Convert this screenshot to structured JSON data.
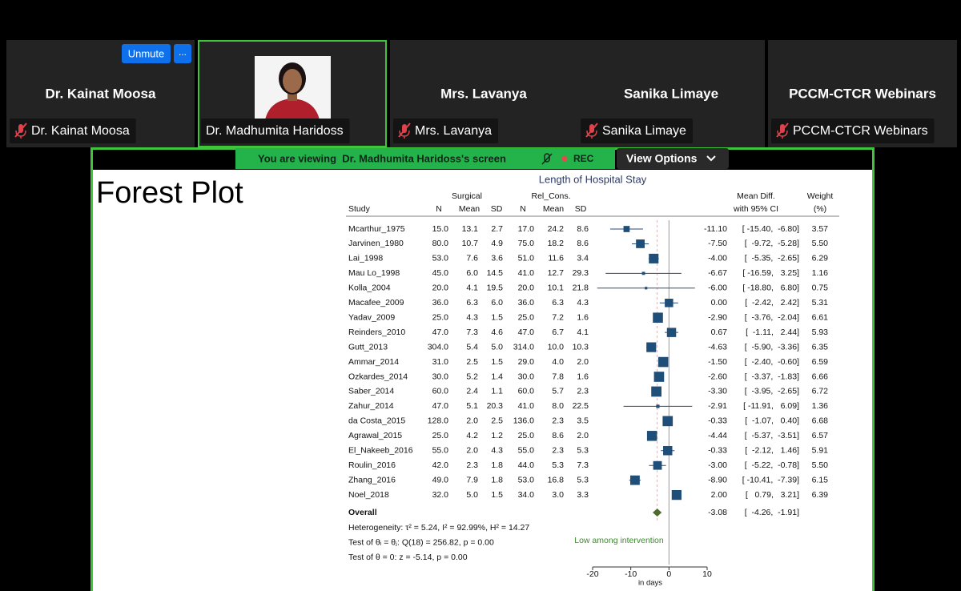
{
  "meeting": {
    "participants": [
      {
        "name": "Dr. Kainat Moosa",
        "label": "Dr. Kainat Moosa",
        "muted": true,
        "active_speaker": false
      },
      {
        "label": "Dr. Madhumita Haridoss",
        "muted": false,
        "active_speaker": true
      },
      {
        "name": "Mrs. Lavanya",
        "label": "Mrs. Lavanya",
        "muted": true,
        "active_speaker": false
      },
      {
        "name": "Sanika Limaye",
        "label": "Sanika Limaye",
        "muted": true,
        "active_speaker": false
      },
      {
        "name": "PCCM-CTCR Webinars",
        "label": "PCCM-CTCR Webinars",
        "muted": true,
        "active_speaker": false
      }
    ],
    "unmute_button": "Unmute",
    "more_button": "...",
    "banner": {
      "text": "You are viewing  Dr. Madhumita Haridoss's screen",
      "rec": "REC"
    },
    "view_options": "View Options"
  },
  "slide": {
    "title": "Forest Plot",
    "plot": {
      "title": "Length of Hospital Stay",
      "groups": [
        "Surgical",
        "Rel_Cons."
      ],
      "columns": [
        "Study",
        "N",
        "Mean",
        "SD",
        "N",
        "Mean",
        "SD"
      ],
      "mean_diff_header": [
        "Mean Diff.",
        "with 95% CI"
      ],
      "weight_header": [
        "Weight",
        "(%)"
      ],
      "rows": [
        [
          "Mcarthur_1975",
          "15.0",
          "13.1",
          "2.7",
          "17.0",
          "24.2",
          "8.6",
          "-11.10",
          "[ -15.40,  -6.80]",
          "3.57"
        ],
        [
          "Jarvinen_1980",
          "80.0",
          "10.7",
          "4.9",
          "75.0",
          "18.2",
          "8.6",
          "-7.50",
          "[  -9.72,  -5.28]",
          "5.50"
        ],
        [
          "Lai_1998",
          "53.0",
          "7.6",
          "3.6",
          "51.0",
          "11.6",
          "3.4",
          "-4.00",
          "[  -5.35,  -2.65]",
          "6.29"
        ],
        [
          "Mau Lo_1998",
          "45.0",
          "6.0",
          "14.5",
          "41.0",
          "12.7",
          "29.3",
          "-6.67",
          "[ -16.59,   3.25]",
          "1.16"
        ],
        [
          "Kolla_2004",
          "20.0",
          "4.1",
          "19.5",
          "20.0",
          "10.1",
          "21.8",
          "-6.00",
          "[ -18.80,   6.80]",
          "0.75"
        ],
        [
          "Macafee_2009",
          "36.0",
          "6.3",
          "6.0",
          "36.0",
          "6.3",
          "4.3",
          "0.00",
          "[  -2.42,   2.42]",
          "5.31"
        ],
        [
          "Yadav_2009",
          "25.0",
          "4.3",
          "1.5",
          "25.0",
          "7.2",
          "1.6",
          "-2.90",
          "[  -3.76,  -2.04]",
          "6.61"
        ],
        [
          "Reinders_2010",
          "47.0",
          "7.3",
          "4.6",
          "47.0",
          "6.7",
          "4.1",
          "0.67",
          "[  -1.11,   2.44]",
          "5.93"
        ],
        [
          "Gutt_2013",
          "304.0",
          "5.4",
          "5.0",
          "314.0",
          "10.0",
          "10.3",
          "-4.63",
          "[  -5.90,  -3.36]",
          "6.35"
        ],
        [
          "Ammar_2014",
          "31.0",
          "2.5",
          "1.5",
          "29.0",
          "4.0",
          "2.0",
          "-1.50",
          "[  -2.40,  -0.60]",
          "6.59"
        ],
        [
          "Ozkardes_2014",
          "30.0",
          "5.2",
          "1.4",
          "30.0",
          "7.8",
          "1.6",
          "-2.60",
          "[  -3.37,  -1.83]",
          "6.66"
        ],
        [
          "Saber_2014",
          "60.0",
          "2.4",
          "1.1",
          "60.0",
          "5.7",
          "2.3",
          "-3.30",
          "[  -3.95,  -2.65]",
          "6.72"
        ],
        [
          "Zahur_2014",
          "47.0",
          "5.1",
          "20.3",
          "41.0",
          "8.0",
          "22.5",
          "-2.91",
          "[ -11.91,   6.09]",
          "1.36"
        ],
        [
          "da Costa_2015",
          "128.0",
          "2.0",
          "2.5",
          "136.0",
          "2.3",
          "3.5",
          "-0.33",
          "[  -1.07,   0.40]",
          "6.68"
        ],
        [
          "Agrawal_2015",
          "25.0",
          "4.2",
          "1.2",
          "25.0",
          "8.6",
          "2.0",
          "-4.44",
          "[  -5.37,  -3.51]",
          "6.57"
        ],
        [
          "El_Nakeeb_2016",
          "55.0",
          "2.0",
          "4.3",
          "55.0",
          "2.3",
          "5.3",
          "-0.33",
          "[  -2.12,   1.46]",
          "5.91"
        ],
        [
          "Roulin_2016",
          "42.0",
          "2.3",
          "1.8",
          "44.0",
          "5.3",
          "7.3",
          "-3.00",
          "[  -5.22,  -0.78]",
          "5.50"
        ],
        [
          "Zhang_2016",
          "49.0",
          "7.9",
          "1.8",
          "53.0",
          "16.8",
          "5.3",
          "-8.90",
          "[ -10.41,  -7.39]",
          "6.15"
        ],
        [
          "Noel_2018",
          "32.0",
          "5.0",
          "1.5",
          "34.0",
          "3.0",
          "3.3",
          "2.00",
          "[   0.79,   3.21]",
          "6.39"
        ]
      ],
      "overall": [
        "Overall",
        "-3.08",
        "[  -4.26,  -1.91]"
      ],
      "stats": [
        "Heterogeneity: τ² = 5.24, I² = 92.99%, H² = 14.27",
        "Test of θᵢ = θⱼ: Q(18) = 256.82, p = 0.00",
        "Test of θ = 0: z = -5.14, p = 0.00"
      ],
      "annotation": "Low among intervention",
      "xticks": [
        "-20",
        "-10",
        "0",
        "10"
      ],
      "xlabel": "in days"
    }
  }
}
